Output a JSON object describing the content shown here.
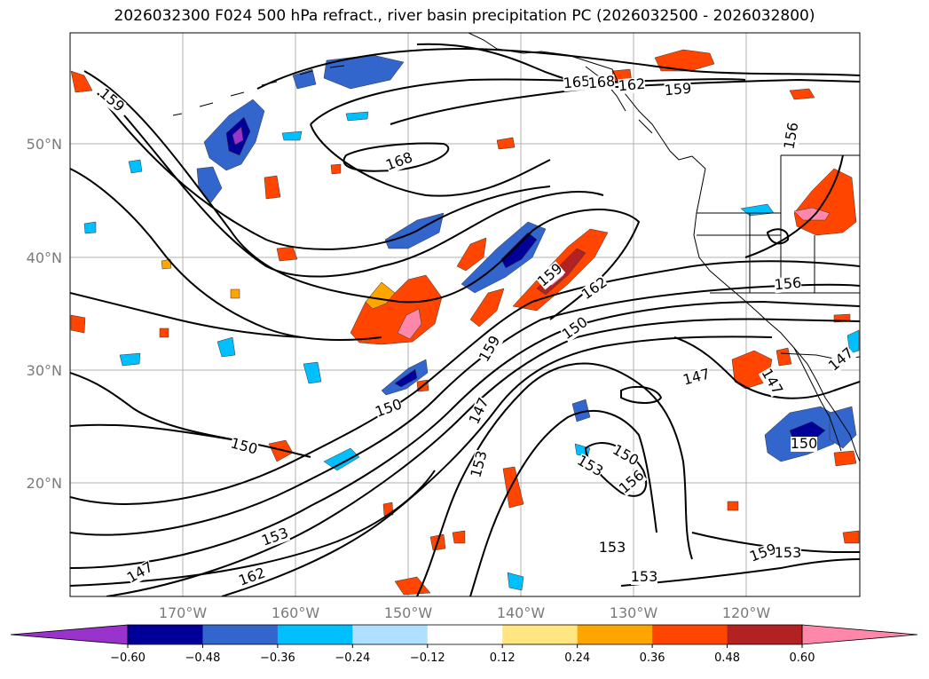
{
  "title": "2026032300 F024 500 hPa refract., river basin precipitation PC (2026032500 - 2026032800)",
  "lat_labels": [
    "50°N",
    "40°N",
    "30°N",
    "20°N"
  ],
  "lon_labels": [
    "170°W",
    "160°W",
    "150°W",
    "140°W",
    "130°W",
    "120°W"
  ],
  "contour_labels": [
    "159",
    "168",
    "165",
    "162",
    "159",
    "168",
    "162",
    "156",
    "156",
    "159",
    "150",
    "150",
    "159",
    "150",
    "147",
    "153",
    "150",
    "153",
    "156",
    "147",
    "153",
    "147",
    "162",
    "153",
    "153",
    "159",
    "153",
    "147",
    "147",
    "150"
  ],
  "colorbar": {
    "colors": [
      "#9933cc",
      "#000099",
      "#3366cc",
      "#00bfff",
      "#b0e0ff",
      "#ffffff",
      "#ffe680",
      "#ffa500",
      "#ff4500",
      "#b22222",
      "#ff88aa"
    ],
    "ticks": [
      "−0.60",
      "−0.48",
      "−0.36",
      "−0.24",
      "−0.12",
      "0.12",
      "0.24",
      "0.36",
      "0.48",
      "0.60"
    ]
  }
}
